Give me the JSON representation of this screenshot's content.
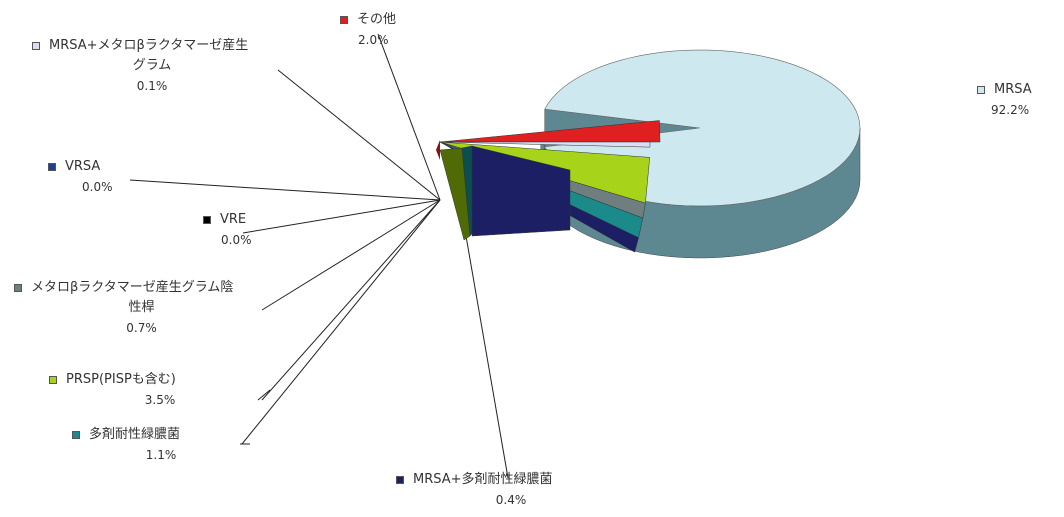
{
  "chart_data": {
    "type": "pie",
    "title": "",
    "series": [
      {
        "name": "MRSA",
        "value": 92.2,
        "label": "92.2%",
        "color": "#cde8ef",
        "side": "#5e8891"
      },
      {
        "name": "その他",
        "value": 2.0,
        "label": "2.0%",
        "color": "#e02020",
        "side": "#8b1010"
      },
      {
        "name": "MRSA+メタロβラクタマーゼ産生グラム",
        "value": 0.1,
        "label": "0.1%",
        "color": "#dcdcf4",
        "side": "#8a8aa0"
      },
      {
        "name": "VRSA",
        "value": 0.0,
        "label": "0.0%",
        "color": "#1f3d9a",
        "side": "#102060"
      },
      {
        "name": "VRE",
        "value": 0.0,
        "label": "0.0%",
        "color": "#000000",
        "side": "#000000"
      },
      {
        "name": "メタロβラクタマーゼ産生グラム陰性桿",
        "value": 0.7,
        "label": "0.7%",
        "color": "#6f7f7f",
        "side": "#404a4a"
      },
      {
        "name": "PRSP(PISPも含む)",
        "value": 3.5,
        "label": "3.5%",
        "color": "#a7d31a",
        "side": "#5e7a08"
      },
      {
        "name": "多剤耐性緑膿菌",
        "value": 1.1,
        "label": "1.1%",
        "color": "#1a8a8a",
        "side": "#0b4f4f"
      },
      {
        "name": "MRSA+多剤耐性緑膿菌",
        "value": 0.4,
        "label": "0.4%",
        "color": "#1c1f63",
        "side": "#0c0e34"
      }
    ],
    "legend": "labels-with-leader-lines"
  },
  "labels": {
    "mrsa": {
      "name": "MRSA",
      "pct": "92.2%"
    },
    "other": {
      "name": "その他",
      "pct": "2.0%"
    },
    "mrsa_metallo": {
      "name_line1": "MRSA+メタロβラクタマーゼ産生",
      "name_line2": "グラム",
      "pct": "0.1%"
    },
    "vrsa": {
      "name": "VRSA",
      "pct": "0.0%"
    },
    "vre": {
      "name": "VRE",
      "pct": "0.0%"
    },
    "metallo": {
      "name_line1": "メタロβラクタマーゼ産生グラム陰",
      "name_line2": "性桿",
      "pct": "0.7%"
    },
    "prsp": {
      "name": "PRSP(PISPも含む)",
      "pct": "3.5%"
    },
    "mdrp": {
      "name": "多剤耐性緑膿菌",
      "pct": "1.1%"
    },
    "mrsa_mdrp": {
      "name": "MRSA+多剤耐性緑膿菌",
      "pct": "0.4%"
    }
  },
  "colors": {
    "mrsa": "#cde8ef",
    "other": "#e02020",
    "mrsa_metallo": "#dcdcf4",
    "vrsa": "#1f3d9a",
    "vre": "#000000",
    "metallo": "#6f7f7f",
    "prsp": "#a7d31a",
    "mdrp": "#1a8a8a",
    "mrsa_mdrp": "#1c1f63"
  }
}
